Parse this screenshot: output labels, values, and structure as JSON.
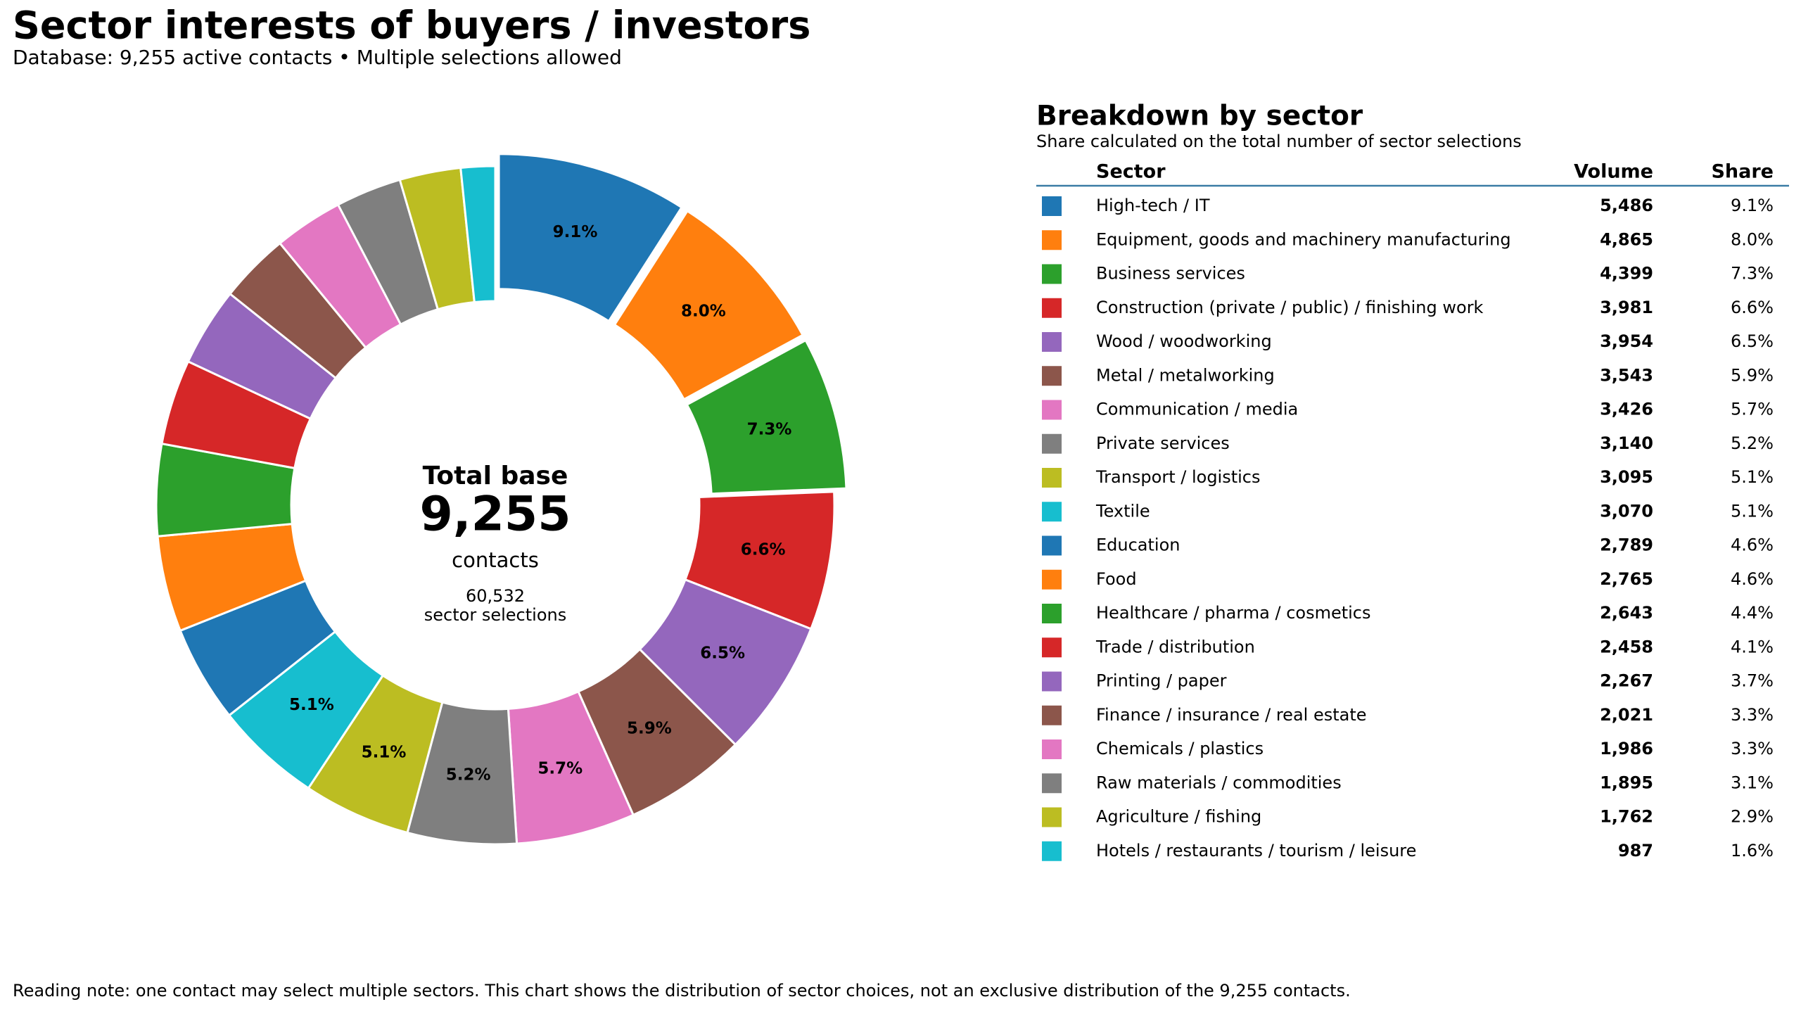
{
  "chart_data": {
    "type": "pie",
    "title": "Sector interests of buyers / investors",
    "subtitle": "Database: 9,255 active contacts • Multiple selections allowed",
    "categories": [
      "High-tech / IT",
      "Equipment, goods and machinery manufacturing",
      "Business services",
      "Construction (private / public) / finishing work",
      "Wood / woodworking",
      "Metal / metalworking",
      "Communication / media",
      "Private services",
      "Transport / logistics",
      "Textile",
      "Education",
      "Food",
      "Healthcare / pharma / cosmetics",
      "Trade / distribution",
      "Printing / paper",
      "Finance / insurance / real estate",
      "Chemicals / plastics",
      "Raw materials / commodities",
      "Agriculture / fishing",
      "Hotels / restaurants / tourism / leisure"
    ],
    "values": [
      5486,
      4865,
      4399,
      3981,
      3954,
      3543,
      3426,
      3140,
      3095,
      3070,
      2789,
      2765,
      2643,
      2458,
      2267,
      2021,
      1986,
      1895,
      1762,
      987
    ],
    "value_labels": [
      "5,486",
      "4,865",
      "4,399",
      "3,981",
      "3,954",
      "3,543",
      "3,426",
      "3,140",
      "3,095",
      "3,070",
      "2,789",
      "2,765",
      "2,643",
      "2,458",
      "2,267",
      "2,021",
      "1,986",
      "1,895",
      "1,762",
      "987"
    ],
    "shares": [
      9.1,
      8.0,
      7.3,
      6.6,
      6.5,
      5.9,
      5.7,
      5.2,
      5.1,
      5.1,
      4.6,
      4.6,
      4.4,
      4.1,
      3.7,
      3.3,
      3.3,
      3.1,
      2.9,
      1.6
    ],
    "share_labels": [
      "9.1%",
      "8.0%",
      "7.3%",
      "6.6%",
      "6.5%",
      "5.9%",
      "5.7%",
      "5.2%",
      "5.1%",
      "5.1%",
      "4.6%",
      "4.6%",
      "4.4%",
      "4.1%",
      "3.7%",
      "3.3%",
      "3.3%",
      "3.1%",
      "2.9%",
      "1.6%"
    ],
    "colors": [
      "#1f77b4",
      "#ff7f0e",
      "#2ca02c",
      "#d62728",
      "#9467bd",
      "#8c564b",
      "#e377c2",
      "#7f7f7f",
      "#bcbd22",
      "#17becf",
      "#1f77b4",
      "#ff7f0e",
      "#2ca02c",
      "#d62728",
      "#9467bd",
      "#8c564b",
      "#e377c2",
      "#7f7f7f",
      "#bcbd22",
      "#17becf"
    ],
    "center": {
      "title": "Total base",
      "total": "9,255",
      "unit": "contacts",
      "selections": "60,532",
      "selections_label": "sector selections"
    },
    "table": {
      "title": "Breakdown by sector",
      "subtitle": "Share calculated on the total number of sector selections",
      "headers": [
        "Sector",
        "Volume",
        "Share"
      ]
    },
    "note": "Reading note: one contact may select multiple sectors. This chart shows the distribution of sector choices, not an exclusive distribution of the 9,255 contacts."
  }
}
